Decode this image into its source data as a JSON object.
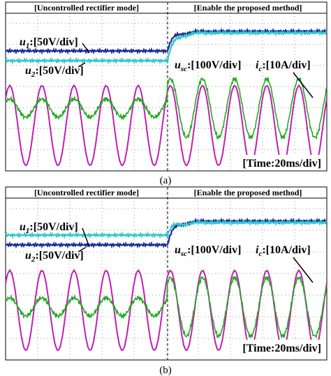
{
  "panels": [
    {
      "left_mode": "[Uncontrolled rectifier mode]",
      "right_mode": "[Enable the proposed method]",
      "u1": {
        "symbol": "u",
        "sub": "1",
        "scale": ":[50V/div]"
      },
      "u2": {
        "symbol": "u",
        "sub": "2",
        "scale": ":[50V/div]"
      },
      "usc": {
        "symbol": "u",
        "sub": "sc",
        "scale": ":[100V/div]"
      },
      "ic": {
        "symbol": "i",
        "sub": "c",
        "scale": ":[10A/div]"
      },
      "time": "[Time:20ms/div]",
      "caption": "(a)"
    },
    {
      "left_mode": "[Uncontrolled rectifier mode]",
      "right_mode": "[Enable the proposed method]",
      "u1": {
        "symbol": "u",
        "sub": "1",
        "scale": ":[50V/div]"
      },
      "u2": {
        "symbol": "u",
        "sub": "2",
        "scale": ":[50V/div]"
      },
      "usc": {
        "symbol": "u",
        "sub": "sc",
        "scale": ":[100V/div]"
      },
      "ic": {
        "symbol": "i",
        "sub": "c",
        "scale": ":[10A/div]"
      },
      "time": "[Time:20ms/div]",
      "caption": "(b)"
    }
  ]
}
